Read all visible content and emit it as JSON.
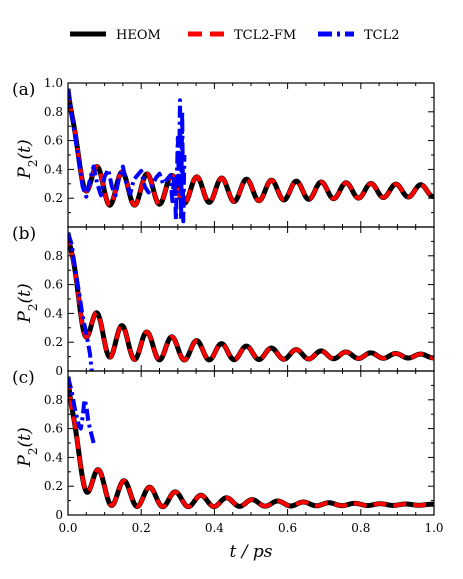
{
  "colors": {
    "heom": "#000000",
    "tcl2fm": "#ff0000",
    "tcl2": "#0000ff"
  },
  "chart_data": {
    "type": "line",
    "xlabel": "t / ps",
    "ylabel": "P2(t)",
    "xlim": [
      0.0,
      1.0
    ],
    "ylim": [
      0.0,
      1.0
    ],
    "x_ticks": [
      "0.0",
      "0.2",
      "0.4",
      "0.6",
      "0.8",
      "1.0"
    ],
    "y_ticks_top": [
      "0.2",
      "0.4",
      "0.6",
      "0.8",
      "1.0"
    ],
    "y_ticks": [
      "0",
      "0.2",
      "0.4",
      "0.6",
      "0.8"
    ],
    "legend": {
      "placement": "top-center",
      "entries": [
        {
          "label": "HEOM",
          "color": "#000000",
          "style": "solid"
        },
        {
          "label": "TCL2-FM",
          "color": "#ff0000",
          "style": "dashed"
        },
        {
          "label": "TCL2",
          "color": "#0000ff",
          "style": "dash-dot"
        }
      ]
    },
    "panels": [
      {
        "label": "(a)",
        "model": {
          "p_start": 0.96,
          "tau": 0.025,
          "p_inf": 0.25,
          "amp": 0.14,
          "env_tau": 0.8,
          "period": 0.068,
          "phase": 0.012,
          "drift": 0.02,
          "drift_tau": 0.4
        },
        "tcl2": {
          "end": 0.32,
          "points": [
            [
              0.0,
              0.96
            ],
            [
              0.02,
              0.62
            ],
            [
              0.04,
              0.28
            ],
            [
              0.05,
              0.21
            ],
            [
              0.06,
              0.33
            ],
            [
              0.07,
              0.42
            ],
            [
              0.08,
              0.3
            ],
            [
              0.09,
              0.22
            ],
            [
              0.1,
              0.35
            ],
            [
              0.11,
              0.4
            ],
            [
              0.12,
              0.28
            ],
            [
              0.13,
              0.22
            ],
            [
              0.14,
              0.35
            ],
            [
              0.15,
              0.42
            ],
            [
              0.16,
              0.3
            ],
            [
              0.17,
              0.23
            ],
            [
              0.18,
              0.33
            ],
            [
              0.2,
              0.39
            ],
            [
              0.21,
              0.28
            ],
            [
              0.22,
              0.24
            ],
            [
              0.24,
              0.34
            ],
            [
              0.25,
              0.37
            ],
            [
              0.26,
              0.3
            ],
            [
              0.27,
              0.33
            ],
            [
              0.28,
              0.36
            ],
            [
              0.285,
              0.18
            ],
            [
              0.29,
              0.36
            ],
            [
              0.295,
              0.05
            ],
            [
              0.3,
              0.62
            ],
            [
              0.303,
              0.3
            ],
            [
              0.306,
              0.88
            ],
            [
              0.309,
              0.05
            ],
            [
              0.312,
              0.8
            ],
            [
              0.315,
              0.04
            ],
            [
              0.318,
              0.5
            ]
          ]
        }
      },
      {
        "label": "(b)",
        "model": {
          "p_start": 0.96,
          "tau": 0.027,
          "p_inf": 0.1,
          "amp": 0.17,
          "env_tau": 0.38,
          "period": 0.068,
          "phase": 0.012,
          "drift": 0.17,
          "drift_tau": 0.26
        },
        "tcl2": {
          "end": 0.07,
          "points": [
            [
              0.0,
              0.96
            ],
            [
              0.01,
              0.88
            ],
            [
              0.02,
              0.7
            ],
            [
              0.03,
              0.55
            ],
            [
              0.04,
              0.38
            ],
            [
              0.05,
              0.26
            ],
            [
              0.06,
              0.12
            ],
            [
              0.065,
              0.0
            ]
          ]
        }
      },
      {
        "label": "(c)",
        "model": {
          "p_start": 0.96,
          "tau": 0.022,
          "p_inf": 0.07,
          "amp": 0.16,
          "env_tau": 0.26,
          "period": 0.07,
          "phase": 0.014,
          "drift": 0.17,
          "drift_tau": 0.2
        },
        "tcl2": {
          "end": 0.075,
          "points": [
            [
              0.0,
              0.96
            ],
            [
              0.01,
              0.86
            ],
            [
              0.02,
              0.72
            ],
            [
              0.03,
              0.62
            ],
            [
              0.035,
              0.6
            ],
            [
              0.04,
              0.68
            ],
            [
              0.045,
              0.8
            ],
            [
              0.05,
              0.76
            ],
            [
              0.055,
              0.66
            ],
            [
              0.06,
              0.6
            ],
            [
              0.065,
              0.55
            ],
            [
              0.07,
              0.5
            ]
          ]
        }
      }
    ]
  }
}
